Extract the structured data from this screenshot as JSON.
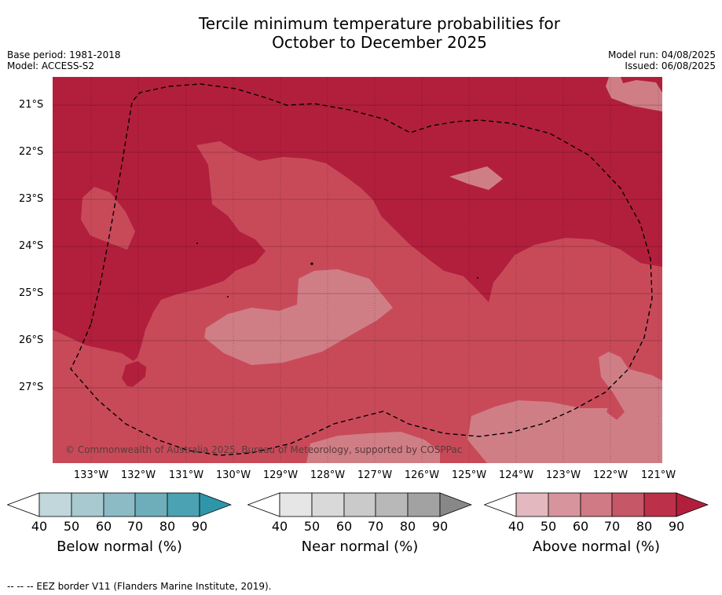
{
  "title_line1": "Tercile minimum temperature probabilities for",
  "title_line2": "October to December 2025",
  "base_period": "Base period: 1981-2018",
  "model": "Model: ACCESS-S2",
  "model_run": "Model run: 04/08/2025",
  "issued": "Issued: 06/08/2025",
  "lat_labels": [
    "21°S",
    "22°S",
    "23°S",
    "24°S",
    "25°S",
    "26°S",
    "27°S"
  ],
  "lon_labels": [
    "133°W",
    "132°W",
    "131°W",
    "130°W",
    "129°W",
    "128°W",
    "127°W",
    "126°W",
    "125°W",
    "124°W",
    "123°W",
    "122°W",
    "121°W"
  ],
  "copyright": "© Commonwealth of Australia 2025, Bureau of Meteorology, supported by COSPPac",
  "legends": [
    {
      "title": "Below normal (%)",
      "ticks": [
        "40",
        "50",
        "60",
        "70",
        "80",
        "90"
      ],
      "colors": [
        "#c1d7dc",
        "#a8c9d0",
        "#8cbbc6",
        "#6eaebb",
        "#4ba2b3",
        "#2f95a9"
      ]
    },
    {
      "title": "Near normal (%)",
      "ticks": [
        "40",
        "50",
        "60",
        "70",
        "80",
        "90"
      ],
      "colors": [
        "#e6e6e6",
        "#d9d9d9",
        "#cacaca",
        "#b8b8b8",
        "#a2a2a2",
        "#888888"
      ]
    },
    {
      "title": "Above normal (%)",
      "ticks": [
        "40",
        "50",
        "60",
        "70",
        "80",
        "90"
      ],
      "colors": [
        "#e3b8be",
        "#d8949d",
        "#cf7a84",
        "#c55766",
        "#bd3049",
        "#b21f3c"
      ]
    }
  ],
  "map_colors": {
    "c80": "#b21f3c",
    "c70": "#bf3049",
    "c60": "#c84a59",
    "c50": "#d07e86",
    "border": "#000000"
  },
  "footnote": "--  --  -- EEZ border V11 (Flanders Marine Institute, 2019)."
}
